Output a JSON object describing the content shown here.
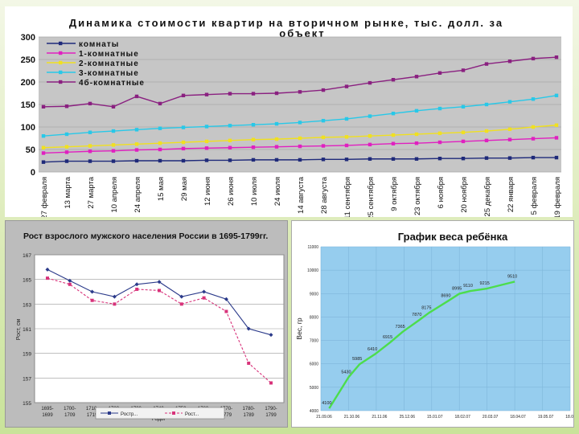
{
  "chart_data": [
    {
      "type": "line",
      "title": "Динамика стоимости квартир на вторичном рынке, тыс. долл. за объект",
      "title_lines": [
        "Динамика стоимости квартир на вторичном рынке, тыс. долл. за",
        "объект"
      ],
      "ylim": [
        0,
        300
      ],
      "yticks": [
        "0",
        "50",
        "100",
        "150",
        "200",
        "250",
        "300"
      ],
      "legend_position": "top-left",
      "categories": [
        "27 февраля",
        "13 марта",
        "27 марта",
        "10 апреля",
        "24 апреля",
        "15 мая",
        "29 мая",
        "12 июня",
        "26 июня",
        "10 июля",
        "24 июля",
        "14 августа",
        "28 августа",
        "11 сентября",
        "25 сентября",
        "9 октября",
        "23 октября",
        "6 ноября",
        "20 ноября",
        "25 декабря",
        "22 января",
        "5 февраля",
        "19 февраля"
      ],
      "series": [
        {
          "name": "комнаты",
          "color": "#1f2a7a",
          "values": [
            22,
            24,
            24,
            24,
            25,
            25,
            25,
            26,
            26,
            27,
            27,
            27,
            28,
            28,
            29,
            29,
            29,
            30,
            30,
            31,
            31,
            32,
            32
          ]
        },
        {
          "name": "1-комнатные",
          "color": "#e020c0",
          "values": [
            42,
            44,
            46,
            47,
            49,
            50,
            52,
            53,
            54,
            55,
            56,
            57,
            58,
            59,
            61,
            63,
            64,
            66,
            68,
            70,
            72,
            74,
            76
          ]
        },
        {
          "name": "2-комнатные",
          "color": "#f0e020",
          "values": [
            54,
            56,
            58,
            60,
            62,
            64,
            66,
            68,
            70,
            72,
            73,
            75,
            77,
            78,
            80,
            82,
            84,
            86,
            88,
            91,
            95,
            100,
            104
          ]
        },
        {
          "name": "3-комнатные",
          "color": "#28c8e8",
          "values": [
            80,
            84,
            88,
            91,
            94,
            97,
            99,
            101,
            103,
            105,
            107,
            110,
            114,
            118,
            124,
            130,
            136,
            141,
            145,
            150,
            156,
            162,
            170
          ]
        },
        {
          "name": "4б-комнатные",
          "color": "#8a2080",
          "values": [
            145,
            146,
            152,
            145,
            168,
            152,
            170,
            172,
            174,
            174,
            175,
            178,
            182,
            190,
            198,
            205,
            212,
            220,
            226,
            240,
            246,
            252,
            255
          ]
        }
      ]
    },
    {
      "type": "line",
      "title": "Рост взрослого мужского населения России в 1695-1799гг.",
      "ylabel": "Рост, см",
      "xlabel": "Годы",
      "ylim": [
        155,
        167
      ],
      "yticks": [
        "155",
        "157",
        "159",
        "161",
        "163",
        "165",
        "167"
      ],
      "categories": [
        "1695-1699",
        "1700-1709",
        "1710-1719",
        "1720-1729",
        "1730-1739",
        "1740-1749",
        "1750-1759",
        "1760-1769",
        "1770-1779",
        "1780-1789",
        "1790-1799"
      ],
      "series": [
        {
          "name": "Ростр...",
          "color": "#2b3a8a",
          "values": [
            165.8,
            164.9,
            164,
            163.6,
            164.6,
            164.8,
            163.6,
            164,
            163.4,
            161,
            160.5
          ]
        },
        {
          "name": "Рост...",
          "color": "#d8327a",
          "values": [
            165.1,
            164.6,
            163.3,
            163,
            164.2,
            164.1,
            163,
            163.5,
            162.4,
            158.2,
            156.6
          ]
        }
      ]
    },
    {
      "type": "line",
      "title": "График веса ребёнка",
      "ylabel": "Вес, гр",
      "ylim": [
        4000,
        11000
      ],
      "yticks": [
        "4000",
        "5000",
        "6000",
        "7000",
        "8000",
        "9000",
        "10000",
        "11000"
      ],
      "xticks": [
        "21.09.06",
        "21.10.06",
        "21.11.06",
        "25.12.06",
        "15.01.07",
        "18.02.07",
        "20.03.07",
        "18.04.07",
        "19.05.07",
        "18.06.07"
      ],
      "series": [
        {
          "name": "Вес",
          "color": "#4cdd4c",
          "points": [
            [
              0.3,
              4100
            ],
            [
              1.0,
              5430
            ],
            [
              1.4,
              5985
            ],
            [
              1.95,
              6410
            ],
            [
              2.5,
              6915
            ],
            [
              2.95,
              7365
            ],
            [
              3.55,
              7870
            ],
            [
              3.9,
              8175
            ],
            [
              4.6,
              8690
            ],
            [
              5.0,
              8995
            ],
            [
              5.4,
              9110
            ],
            [
              6.0,
              9215
            ],
            [
              7.0,
              9510
            ]
          ],
          "labels": [
            "4100",
            "5430",
            "5985",
            "6410",
            "6915",
            "7365",
            "7870",
            "8175",
            "8690",
            "8995",
            "9110",
            "9215",
            "9510"
          ]
        }
      ]
    }
  ]
}
